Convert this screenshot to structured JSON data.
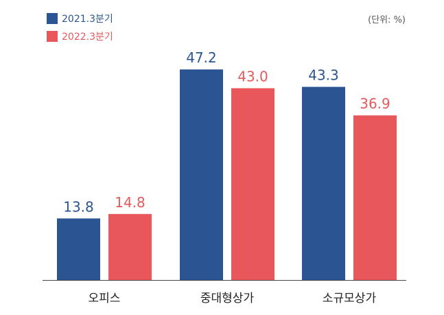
{
  "chart_data": {
    "type": "bar",
    "categories": [
      "오피스",
      "중대형상가",
      "소규모상가"
    ],
    "series": [
      {
        "name": "2021.3분기",
        "values": [
          13.8,
          47.2,
          43.3
        ],
        "color": "#2b5592"
      },
      {
        "name": "2022.3분기",
        "values": [
          14.8,
          43.0,
          36.9
        ],
        "color": "#e8585b"
      }
    ],
    "unit_label": "(단위: %)",
    "ylim": [
      0,
      50
    ],
    "grid": false,
    "legend_position": "top-left"
  }
}
